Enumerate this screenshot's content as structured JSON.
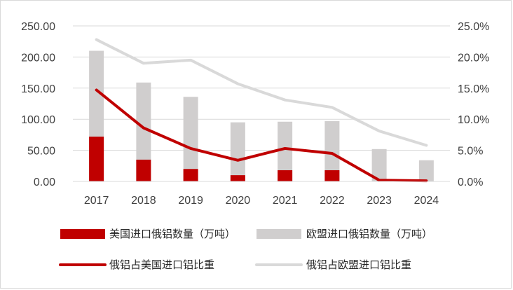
{
  "chart_data": {
    "type": "bar",
    "title": "",
    "xlabel": "",
    "ylabel": "",
    "categories": [
      "2017",
      "2018",
      "2019",
      "2020",
      "2021",
      "2022",
      "2023",
      "2024"
    ],
    "ylim": [
      0,
      250
    ],
    "y2lim": [
      0,
      25
    ],
    "y_ticks": [
      "0.00",
      "50.00",
      "100.00",
      "150.00",
      "200.00",
      "250.00"
    ],
    "y2_ticks": [
      "0.0%",
      "5.0%",
      "10.0%",
      "15.0%",
      "20.0%",
      "25.0%"
    ],
    "series": [
      {
        "name": "美国进口俄铝数量（万吨）",
        "kind": "bar",
        "axis": "left",
        "color": "#c00000",
        "values": [
          72,
          35,
          20,
          10,
          18,
          18,
          0.5,
          0.3
        ]
      },
      {
        "name": "欧盟进口俄铝数量（万吨）",
        "kind": "bar",
        "axis": "left",
        "color": "#d0cece",
        "values": [
          210,
          159,
          136,
          95,
          96,
          97,
          52,
          34
        ]
      },
      {
        "name": "俄铝占美国进口铝比重",
        "kind": "line",
        "axis": "right",
        "unit": "%",
        "color": "#c00000",
        "values": [
          14.7,
          8.6,
          5.3,
          3.4,
          5.3,
          4.5,
          0.2,
          0.1
        ]
      },
      {
        "name": "俄铝占欧盟进口铝比重",
        "kind": "line",
        "axis": "right",
        "unit": "%",
        "color": "#d9d9d9",
        "values": [
          22.8,
          19.0,
          19.5,
          15.7,
          13.1,
          11.9,
          8.1,
          5.8
        ]
      }
    ],
    "legend_position": "bottom",
    "grid": true
  }
}
